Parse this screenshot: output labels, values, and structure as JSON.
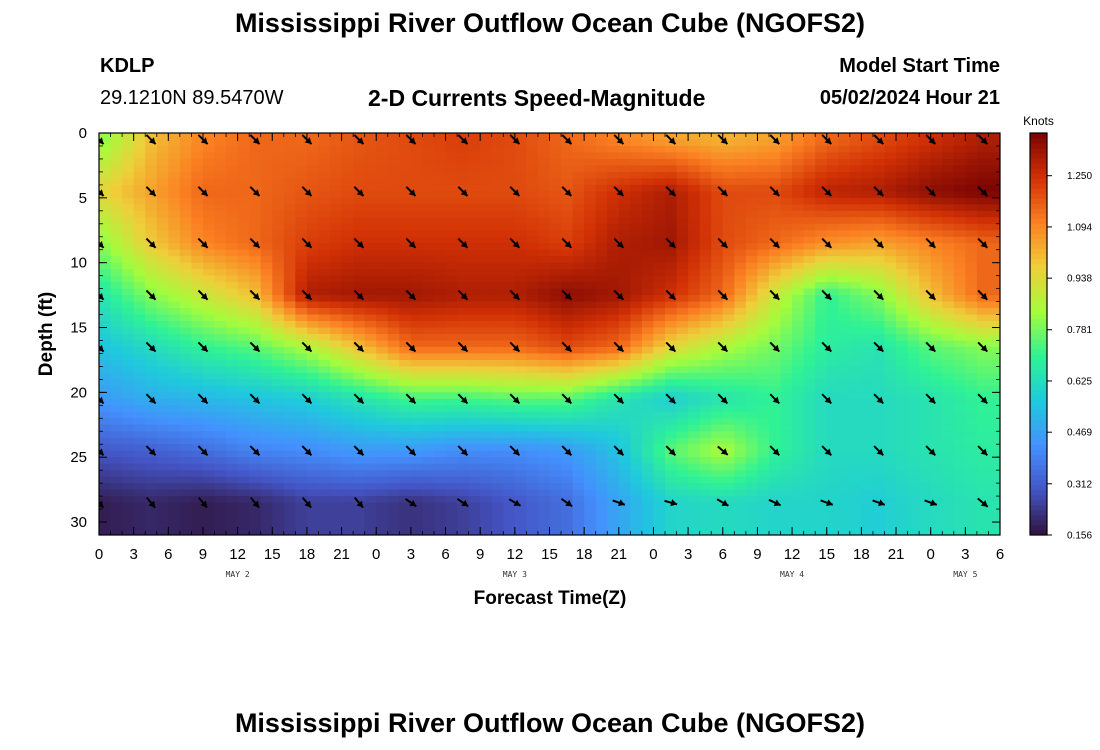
{
  "header": {
    "title": "Mississippi River Outflow Ocean Cube (NGOFS2)",
    "station_id": "KDLP",
    "station_coords": "29.1210N  89.5470W",
    "subtitle": "2-D Currents Speed-Magnitude",
    "model_start_label": "Model Start Time",
    "model_start_value": "05/02/2024 Hour 21"
  },
  "footer": {
    "title": "Mississippi River Outflow Ocean Cube (NGOFS2)"
  },
  "chart_data": {
    "type": "heatmap",
    "title": "2-D Currents Speed-Magnitude",
    "xlabel": "Forecast Time(Z)",
    "ylabel": "Depth (ft)",
    "x_range": [
      0,
      78
    ],
    "y_range": [
      0,
      31
    ],
    "y_inverted": true,
    "x_ticks": [
      0,
      3,
      6,
      9,
      12,
      15,
      18,
      21,
      24,
      27,
      30,
      33,
      36,
      39,
      42,
      45,
      48,
      51,
      54,
      57,
      60,
      63,
      66,
      69,
      72,
      75,
      78
    ],
    "x_tick_labels": [
      "0",
      "3",
      "6",
      "9",
      "12",
      "15",
      "18",
      "21",
      "0",
      "3",
      "6",
      "9",
      "12",
      "15",
      "18",
      "21",
      "0",
      "3",
      "6",
      "9",
      "12",
      "15",
      "18",
      "21",
      "0",
      "3",
      "6"
    ],
    "y_ticks": [
      0,
      5,
      10,
      15,
      20,
      25,
      30
    ],
    "y_tick_labels": [
      "0",
      "5",
      "10",
      "15",
      "20",
      "25",
      "30"
    ],
    "date_labels": [
      {
        "text": "MAY 2",
        "x": 12
      },
      {
        "text": "MAY 3",
        "x": 36
      },
      {
        "text": "MAY 4",
        "x": 60
      },
      {
        "text": "MAY 5",
        "x": 75
      }
    ],
    "colorbar": {
      "title": "Knots",
      "min": 0.156,
      "max": 1.38,
      "ticks": [
        0.156,
        0.312,
        0.469,
        0.625,
        0.781,
        0.938,
        1.094,
        1.25
      ],
      "tick_labels": [
        "0.156",
        "0.312",
        "0.469",
        "0.625",
        "0.781",
        "0.938",
        "1.094",
        "1.250"
      ],
      "colors": [
        "#30123b",
        "#4454c4",
        "#4490fe",
        "#1fc9dd",
        "#2ff295",
        "#a4fc3c",
        "#eecf3a",
        "#fb8022",
        "#d23105",
        "#7a0403"
      ]
    },
    "grid_times": [
      0,
      4.5,
      9,
      13.5,
      18,
      22.5,
      27,
      31.5,
      36,
      40.5,
      45,
      49.5,
      54,
      58.5,
      63,
      67.5,
      72,
      76.5
    ],
    "grid_depths": [
      0.5,
      4.5,
      8.5,
      12.5,
      16.5,
      20.5,
      24.5,
      28.5
    ],
    "speed_knots": [
      [
        0.8,
        1.0,
        1.1,
        1.15,
        1.15,
        1.18,
        1.2,
        1.22,
        1.2,
        1.15,
        1.1,
        1.05,
        1.02,
        1.05,
        1.15,
        1.2,
        1.25,
        1.3
      ],
      [
        0.95,
        1.05,
        1.15,
        1.15,
        1.18,
        1.2,
        1.2,
        1.2,
        1.2,
        1.18,
        1.25,
        1.3,
        1.2,
        1.2,
        1.28,
        1.3,
        1.35,
        1.38
      ],
      [
        0.8,
        0.98,
        1.1,
        1.15,
        1.22,
        1.25,
        1.25,
        1.25,
        1.25,
        1.22,
        1.3,
        1.32,
        1.2,
        1.15,
        1.08,
        1.05,
        1.1,
        1.15
      ],
      [
        0.65,
        0.8,
        0.9,
        1.0,
        1.3,
        1.32,
        1.32,
        1.3,
        1.3,
        1.35,
        1.32,
        1.25,
        1.15,
        0.9,
        0.7,
        0.8,
        1.0,
        1.15
      ],
      [
        0.55,
        0.62,
        0.7,
        0.75,
        0.85,
        1.0,
        1.15,
        1.15,
        1.15,
        1.2,
        1.15,
        0.95,
        0.85,
        0.78,
        0.68,
        0.65,
        0.75,
        0.8
      ],
      [
        0.45,
        0.5,
        0.52,
        0.55,
        0.58,
        0.65,
        0.72,
        0.72,
        0.75,
        0.75,
        0.65,
        0.58,
        0.65,
        0.7,
        0.62,
        0.62,
        0.65,
        0.7
      ],
      [
        0.3,
        0.32,
        0.35,
        0.4,
        0.42,
        0.45,
        0.45,
        0.42,
        0.42,
        0.45,
        0.55,
        0.75,
        0.85,
        0.7,
        0.62,
        0.62,
        0.65,
        0.68
      ],
      [
        0.18,
        0.2,
        0.18,
        0.2,
        0.25,
        0.25,
        0.22,
        0.25,
        0.3,
        0.35,
        0.48,
        0.6,
        0.62,
        0.6,
        0.6,
        0.58,
        0.62,
        0.65
      ]
    ],
    "direction_deg": [
      [
        135,
        135,
        135,
        135,
        135,
        135,
        135,
        135,
        135,
        135,
        135,
        135,
        135,
        135,
        135,
        135,
        135,
        135
      ],
      [
        135,
        135,
        135,
        135,
        135,
        135,
        135,
        135,
        135,
        135,
        135,
        135,
        135,
        135,
        135,
        135,
        135,
        135
      ],
      [
        135,
        135,
        135,
        135,
        135,
        135,
        135,
        135,
        135,
        135,
        135,
        135,
        135,
        135,
        135,
        135,
        135,
        135
      ],
      [
        135,
        135,
        135,
        135,
        135,
        135,
        135,
        135,
        135,
        135,
        135,
        135,
        135,
        135,
        135,
        135,
        135,
        135
      ],
      [
        135,
        135,
        135,
        135,
        135,
        135,
        135,
        135,
        135,
        135,
        135,
        135,
        135,
        135,
        135,
        135,
        135,
        135
      ],
      [
        135,
        135,
        135,
        135,
        135,
        135,
        135,
        135,
        135,
        135,
        135,
        135,
        135,
        135,
        135,
        135,
        135,
        135
      ],
      [
        135,
        135,
        135,
        135,
        135,
        135,
        135,
        135,
        135,
        135,
        135,
        135,
        130,
        135,
        135,
        135,
        135,
        135
      ],
      [
        140,
        140,
        140,
        140,
        140,
        140,
        125,
        125,
        120,
        125,
        110,
        105,
        120,
        115,
        110,
        110,
        110,
        130
      ]
    ]
  }
}
